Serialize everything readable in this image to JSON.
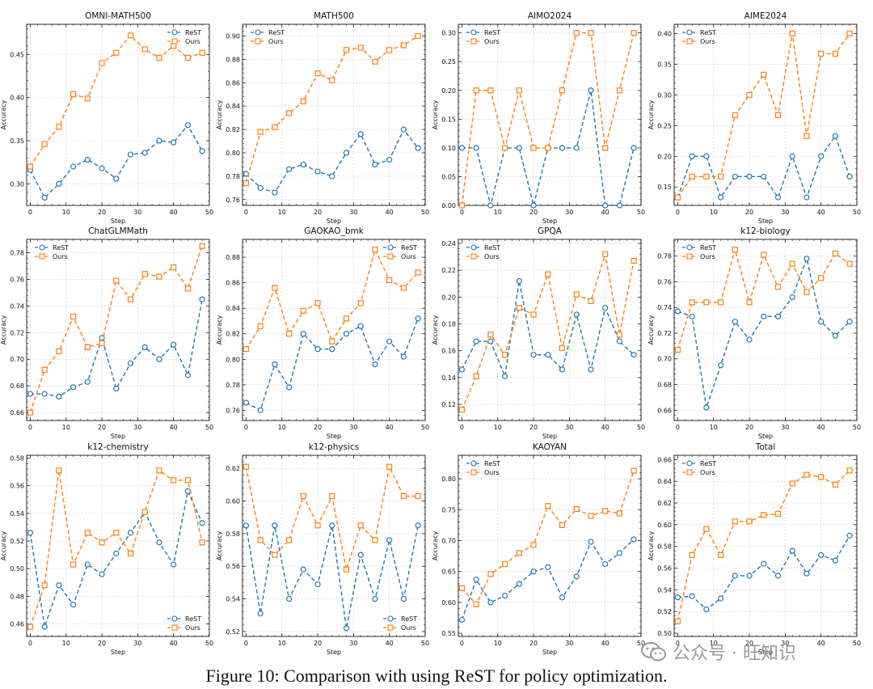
{
  "figure": {
    "caption": "Figure 10: Comparison with using ReST for policy optimization.",
    "watermark": "公众号 · 旺知识",
    "series_names": [
      "ReST",
      "Ours"
    ],
    "colors": {
      "ReST": "#1f77b4",
      "Ours": "#ff7f0e"
    }
  },
  "chart_data": [
    {
      "type": "line",
      "title": "OMNI-MATH500",
      "xlabel": "Step",
      "ylabel": "Accuracy",
      "x": [
        0,
        4,
        8,
        12,
        16,
        20,
        24,
        28,
        32,
        36,
        40,
        44,
        48
      ],
      "xlim": [
        -1,
        50
      ],
      "xticks": [
        0,
        10,
        20,
        30,
        40,
        50
      ],
      "ylim": [
        0.275,
        0.485
      ],
      "yticks": [
        0.3,
        0.35,
        0.4,
        0.45
      ],
      "ytick_labels": [
        "0.30",
        "0.35",
        "0.40",
        "0.45"
      ],
      "legend": "top-right",
      "series": [
        {
          "name": "ReST",
          "values": [
            0.316,
            0.284,
            0.3,
            0.32,
            0.328,
            0.318,
            0.306,
            0.334,
            0.336,
            0.35,
            0.348,
            0.368,
            0.338
          ]
        },
        {
          "name": "Ours",
          "values": [
            0.32,
            0.346,
            0.366,
            0.404,
            0.399,
            0.44,
            0.452,
            0.472,
            0.456,
            0.446,
            0.46,
            0.446,
            0.452
          ]
        }
      ]
    },
    {
      "type": "line",
      "title": "MATH500",
      "xlabel": "Step",
      "ylabel": "Accuracy",
      "x": [
        0,
        4,
        8,
        12,
        16,
        20,
        24,
        28,
        32,
        36,
        40,
        44,
        48
      ],
      "xlim": [
        -1,
        50
      ],
      "xticks": [
        0,
        10,
        20,
        30,
        40,
        50
      ],
      "ylim": [
        0.755,
        0.91
      ],
      "yticks": [
        0.76,
        0.78,
        0.8,
        0.82,
        0.84,
        0.86,
        0.88,
        0.9
      ],
      "ytick_labels": [
        "0.76",
        "0.78",
        "0.80",
        "0.82",
        "0.84",
        "0.86",
        "0.88",
        "0.90"
      ],
      "legend": "top-left",
      "series": [
        {
          "name": "ReST",
          "values": [
            0.782,
            0.77,
            0.766,
            0.786,
            0.79,
            0.784,
            0.78,
            0.8,
            0.816,
            0.79,
            0.794,
            0.82,
            0.804
          ]
        },
        {
          "name": "Ours",
          "values": [
            0.774,
            0.818,
            0.822,
            0.834,
            0.844,
            0.868,
            0.862,
            0.888,
            0.89,
            0.878,
            0.888,
            0.892,
            0.9
          ]
        }
      ]
    },
    {
      "type": "line",
      "title": "AIMO2024",
      "xlabel": "Step",
      "ylabel": "Accuracy",
      "x": [
        0,
        4,
        8,
        12,
        16,
        20,
        24,
        28,
        32,
        36,
        40,
        44,
        48
      ],
      "xlim": [
        -1,
        50
      ],
      "xticks": [
        0,
        10,
        20,
        30,
        40,
        50
      ],
      "ylim": [
        0.0,
        0.315
      ],
      "yticks": [
        0.0,
        0.05,
        0.1,
        0.15,
        0.2,
        0.25,
        0.3
      ],
      "ytick_labels": [
        "0.00",
        "0.05",
        "0.10",
        "0.15",
        "0.20",
        "0.25",
        "0.30"
      ],
      "legend": "top-left",
      "series": [
        {
          "name": "ReST",
          "values": [
            0.1,
            0.1,
            0.0,
            0.1,
            0.1,
            0.0,
            0.1,
            0.1,
            0.1,
            0.2,
            0.0,
            0.0,
            0.1
          ]
        },
        {
          "name": "Ours",
          "values": [
            0.0,
            0.2,
            0.2,
            0.1,
            0.2,
            0.1,
            0.1,
            0.2,
            0.3,
            0.3,
            0.1,
            0.2,
            0.3
          ]
        }
      ]
    },
    {
      "type": "line",
      "title": "AIME2024",
      "xlabel": "Step",
      "ylabel": "Accuracy",
      "x": [
        0,
        4,
        8,
        12,
        16,
        20,
        24,
        28,
        32,
        36,
        40,
        44,
        48
      ],
      "xlim": [
        -1,
        50
      ],
      "xticks": [
        0,
        10,
        20,
        30,
        40,
        50
      ],
      "ylim": [
        0.12,
        0.415
      ],
      "yticks": [
        0.15,
        0.2,
        0.25,
        0.3,
        0.35,
        0.4
      ],
      "ytick_labels": [
        "0.15",
        "0.20",
        "0.25",
        "0.30",
        "0.35",
        "0.40"
      ],
      "legend": "top-left",
      "series": [
        {
          "name": "ReST",
          "values": [
            0.133,
            0.2,
            0.2,
            0.133,
            0.167,
            0.167,
            0.167,
            0.133,
            0.2,
            0.133,
            0.2,
            0.233,
            0.167
          ]
        },
        {
          "name": "Ours",
          "values": [
            0.133,
            0.167,
            0.167,
            0.167,
            0.267,
            0.3,
            0.333,
            0.267,
            0.4,
            0.233,
            0.367,
            0.367,
            0.4
          ]
        }
      ]
    },
    {
      "type": "line",
      "title": "ChatGLMMath",
      "xlabel": "Step",
      "ylabel": "Accuracy",
      "x": [
        0,
        4,
        8,
        12,
        16,
        20,
        24,
        28,
        32,
        36,
        40,
        44,
        48
      ],
      "xlim": [
        -1,
        50
      ],
      "xticks": [
        0,
        10,
        20,
        30,
        40,
        50
      ],
      "ylim": [
        0.654,
        0.79
      ],
      "yticks": [
        0.66,
        0.68,
        0.7,
        0.72,
        0.74,
        0.76,
        0.78
      ],
      "ytick_labels": [
        "0.66",
        "0.68",
        "0.70",
        "0.72",
        "0.74",
        "0.76",
        "0.78"
      ],
      "legend": "top-left",
      "series": [
        {
          "name": "ReST",
          "values": [
            0.674,
            0.674,
            0.672,
            0.679,
            0.683,
            0.716,
            0.678,
            0.697,
            0.709,
            0.7,
            0.711,
            0.688,
            0.745
          ]
        },
        {
          "name": "Ours",
          "values": [
            0.66,
            0.692,
            0.706,
            0.732,
            0.709,
            0.712,
            0.759,
            0.745,
            0.764,
            0.762,
            0.769,
            0.753,
            0.785
          ]
        }
      ]
    },
    {
      "type": "line",
      "title": "GAOKAO_bmk",
      "xlabel": "Step",
      "ylabel": "Accuracy",
      "x": [
        0,
        4,
        8,
        12,
        16,
        20,
        24,
        28,
        32,
        36,
        40,
        44,
        48
      ],
      "xlim": [
        -1,
        50
      ],
      "xticks": [
        0,
        10,
        20,
        30,
        40,
        50
      ],
      "ylim": [
        0.752,
        0.894
      ],
      "yticks": [
        0.76,
        0.78,
        0.8,
        0.82,
        0.84,
        0.86,
        0.88
      ],
      "ytick_labels": [
        "0.76",
        "0.78",
        "0.80",
        "0.82",
        "0.84",
        "0.86",
        "0.88"
      ],
      "legend": "top-right",
      "series": [
        {
          "name": "ReST",
          "values": [
            0.766,
            0.76,
            0.796,
            0.778,
            0.82,
            0.808,
            0.808,
            0.82,
            0.826,
            0.796,
            0.814,
            0.802,
            0.832
          ]
        },
        {
          "name": "Ours",
          "values": [
            0.808,
            0.826,
            0.856,
            0.82,
            0.838,
            0.844,
            0.814,
            0.832,
            0.844,
            0.886,
            0.862,
            0.856,
            0.868
          ]
        }
      ]
    },
    {
      "type": "line",
      "title": "GPQA",
      "xlabel": "Step",
      "ylabel": "Accuracy",
      "x": [
        0,
        4,
        8,
        12,
        16,
        20,
        24,
        28,
        32,
        36,
        40,
        44,
        48
      ],
      "xlim": [
        -1,
        50
      ],
      "xticks": [
        0,
        10,
        20,
        30,
        40,
        50
      ],
      "ylim": [
        0.108,
        0.243
      ],
      "yticks": [
        0.12,
        0.14,
        0.16,
        0.18,
        0.2,
        0.22,
        0.24
      ],
      "ytick_labels": [
        "0.12",
        "0.14",
        "0.16",
        "0.18",
        "0.20",
        "0.22",
        "0.24"
      ],
      "legend": "top-left",
      "series": [
        {
          "name": "ReST",
          "values": [
            0.146,
            0.167,
            0.167,
            0.141,
            0.212,
            0.157,
            0.157,
            0.146,
            0.187,
            0.146,
            0.192,
            0.167,
            0.157
          ]
        },
        {
          "name": "Ours",
          "values": [
            0.116,
            0.141,
            0.172,
            0.157,
            0.192,
            0.187,
            0.217,
            0.162,
            0.202,
            0.197,
            0.232,
            0.172,
            0.227
          ]
        }
      ]
    },
    {
      "type": "line",
      "title": "k12-biology",
      "xlabel": "Step",
      "ylabel": "Accuracy",
      "x": [
        0,
        4,
        8,
        12,
        16,
        20,
        24,
        28,
        32,
        36,
        40,
        44,
        48
      ],
      "xlim": [
        -1,
        50
      ],
      "xticks": [
        0,
        10,
        20,
        30,
        40,
        50
      ],
      "ylim": [
        0.652,
        0.793
      ],
      "yticks": [
        0.66,
        0.68,
        0.7,
        0.72,
        0.74,
        0.76,
        0.78
      ],
      "ytick_labels": [
        "0.66",
        "0.68",
        "0.70",
        "0.72",
        "0.74",
        "0.76",
        "0.78"
      ],
      "legend": "top-left",
      "series": [
        {
          "name": "ReST",
          "values": [
            0.737,
            0.733,
            0.662,
            0.695,
            0.729,
            0.715,
            0.733,
            0.733,
            0.748,
            0.778,
            0.729,
            0.718,
            0.729
          ]
        },
        {
          "name": "Ours",
          "values": [
            0.707,
            0.744,
            0.744,
            0.744,
            0.785,
            0.744,
            0.781,
            0.756,
            0.774,
            0.752,
            0.763,
            0.782,
            0.774
          ]
        }
      ]
    },
    {
      "type": "line",
      "title": "k12-chemistry",
      "xlabel": "Step",
      "ylabel": "Accuracy",
      "x": [
        0,
        4,
        8,
        12,
        16,
        20,
        24,
        28,
        32,
        36,
        40,
        44,
        48
      ],
      "xlim": [
        -1,
        50
      ],
      "xticks": [
        0,
        10,
        20,
        30,
        40,
        50
      ],
      "ylim": [
        0.451,
        0.582
      ],
      "yticks": [
        0.46,
        0.48,
        0.5,
        0.52,
        0.54,
        0.56,
        0.58
      ],
      "ytick_labels": [
        "0.46",
        "0.48",
        "0.50",
        "0.52",
        "0.54",
        "0.56",
        "0.58"
      ],
      "legend": "bottom-right",
      "series": [
        {
          "name": "ReST",
          "values": [
            0.526,
            0.458,
            0.488,
            0.474,
            0.503,
            0.496,
            0.511,
            0.526,
            0.541,
            0.519,
            0.503,
            0.556,
            0.533
          ]
        },
        {
          "name": "Ours",
          "values": [
            0.458,
            0.488,
            0.571,
            0.503,
            0.526,
            0.519,
            0.526,
            0.511,
            0.541,
            0.571,
            0.564,
            0.564,
            0.519
          ]
        }
      ]
    },
    {
      "type": "line",
      "title": "k12-physics",
      "xlabel": "Step",
      "ylabel": "Accuracy",
      "x": [
        0,
        4,
        8,
        12,
        16,
        20,
        24,
        28,
        32,
        36,
        40,
        44,
        48
      ],
      "xlim": [
        -1,
        50
      ],
      "xticks": [
        0,
        10,
        20,
        30,
        40,
        50
      ],
      "ylim": [
        0.517,
        0.628
      ],
      "yticks": [
        0.52,
        0.54,
        0.56,
        0.58,
        0.6,
        0.62
      ],
      "ytick_labels": [
        "0.52",
        "0.54",
        "0.56",
        "0.58",
        "0.60",
        "0.62"
      ],
      "legend": "bottom-right",
      "series": [
        {
          "name": "ReST",
          "values": [
            0.585,
            0.531,
            0.585,
            0.54,
            0.558,
            0.549,
            0.585,
            0.522,
            0.567,
            0.54,
            0.576,
            0.54,
            0.585
          ]
        },
        {
          "name": "Ours",
          "values": [
            0.621,
            0.576,
            0.567,
            0.576,
            0.603,
            0.585,
            0.603,
            0.558,
            0.585,
            0.576,
            0.621,
            0.603,
            0.603
          ]
        }
      ]
    },
    {
      "type": "line",
      "title": "KAOYAN",
      "xlabel": "Step",
      "ylabel": "Accuracy",
      "x": [
        0,
        4,
        8,
        12,
        16,
        20,
        24,
        28,
        32,
        36,
        40,
        44,
        48
      ],
      "xlim": [
        -1,
        50
      ],
      "xticks": [
        0,
        10,
        20,
        30,
        40,
        50
      ],
      "ylim": [
        0.545,
        0.838
      ],
      "yticks": [
        0.55,
        0.6,
        0.65,
        0.7,
        0.75,
        0.8
      ],
      "ytick_labels": [
        "0.55",
        "0.60",
        "0.65",
        "0.70",
        "0.75",
        "0.80"
      ],
      "legend": "top-left",
      "series": [
        {
          "name": "ReST",
          "values": [
            0.572,
            0.637,
            0.6,
            0.611,
            0.63,
            0.65,
            0.657,
            0.608,
            0.642,
            0.698,
            0.662,
            0.68,
            0.702
          ]
        },
        {
          "name": "Ours",
          "values": [
            0.623,
            0.597,
            0.646,
            0.662,
            0.68,
            0.693,
            0.756,
            0.725,
            0.751,
            0.74,
            0.748,
            0.744,
            0.813
          ]
        }
      ]
    },
    {
      "type": "line",
      "title": "Total",
      "xlabel": "Step",
      "ylabel": "Accuracy",
      "x": [
        0,
        4,
        8,
        12,
        16,
        20,
        24,
        28,
        32,
        36,
        40,
        44,
        48
      ],
      "xlim": [
        -1,
        50
      ],
      "xticks": [
        0,
        10,
        20,
        30,
        40,
        50
      ],
      "ylim": [
        0.497,
        0.664
      ],
      "yticks": [
        0.5,
        0.52,
        0.54,
        0.56,
        0.58,
        0.6,
        0.62,
        0.64,
        0.66
      ],
      "ytick_labels": [
        "0.50",
        "0.52",
        "0.54",
        "0.56",
        "0.58",
        "0.60",
        "0.62",
        "0.64",
        "0.66"
      ],
      "legend": "top-left",
      "series": [
        {
          "name": "ReST",
          "values": [
            0.533,
            0.534,
            0.522,
            0.532,
            0.553,
            0.553,
            0.564,
            0.553,
            0.576,
            0.555,
            0.572,
            0.567,
            0.59
          ]
        },
        {
          "name": "Ours",
          "values": [
            0.511,
            0.572,
            0.596,
            0.572,
            0.603,
            0.603,
            0.609,
            0.61,
            0.638,
            0.646,
            0.644,
            0.637,
            0.65
          ]
        }
      ]
    }
  ]
}
